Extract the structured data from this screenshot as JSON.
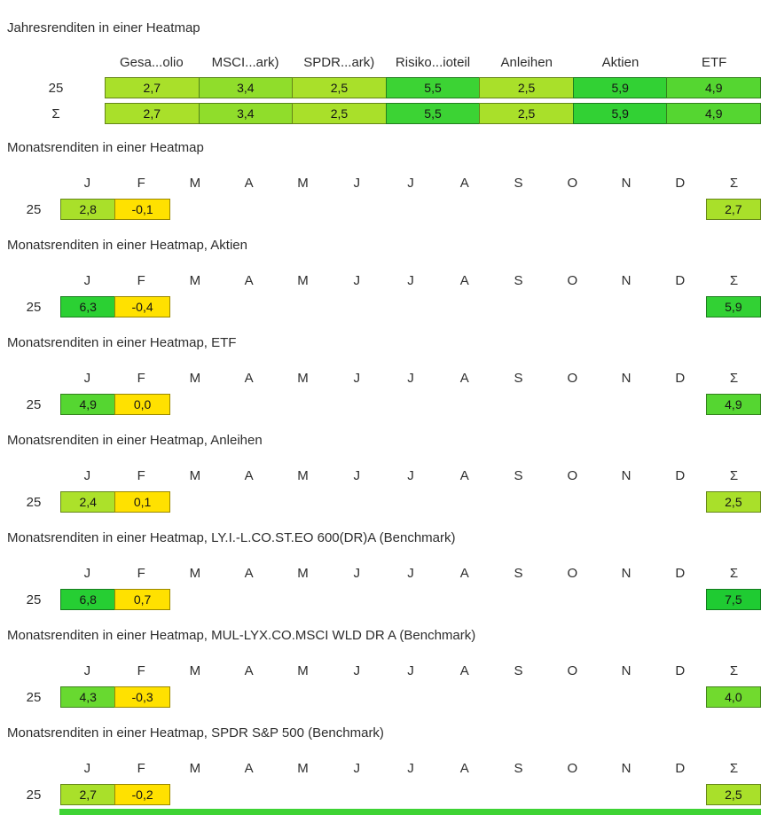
{
  "style": {
    "background": "#ffffff",
    "text": "#2d2d2d",
    "cell_border": "rgba(0,0,0,0.4)"
  },
  "chart_data": [
    {
      "type": "heatmap",
      "kind": "year",
      "title": "Jahresrenditen in einer Heatmap",
      "columns": [
        "Gesa...olio",
        "MSCI...ark)",
        "SPDR...ark)",
        "Risiko...ioteil",
        "Anleihen",
        "Aktien",
        "ETF"
      ],
      "rows": [
        {
          "label": "25",
          "cells": [
            {
              "v": "2,7",
              "value": 2.7,
              "color": "#a9e02a"
            },
            {
              "v": "3,4",
              "value": 3.4,
              "color": "#90dd2b"
            },
            {
              "v": "2,5",
              "value": 2.5,
              "color": "#a9e02a"
            },
            {
              "v": "5,5",
              "value": 5.5,
              "color": "#3cd334"
            },
            {
              "v": "2,5",
              "value": 2.5,
              "color": "#a9e02a"
            },
            {
              "v": "5,9",
              "value": 5.9,
              "color": "#32d134"
            },
            {
              "v": "4,9",
              "value": 4.9,
              "color": "#55d631"
            }
          ]
        },
        {
          "label": "Σ",
          "cells": [
            {
              "v": "2,7",
              "value": 2.7,
              "color": "#a9e02a"
            },
            {
              "v": "3,4",
              "value": 3.4,
              "color": "#90dd2b"
            },
            {
              "v": "2,5",
              "value": 2.5,
              "color": "#a9e02a"
            },
            {
              "v": "5,5",
              "value": 5.5,
              "color": "#3cd334"
            },
            {
              "v": "2,5",
              "value": 2.5,
              "color": "#a9e02a"
            },
            {
              "v": "5,9",
              "value": 5.9,
              "color": "#32d134"
            },
            {
              "v": "4,9",
              "value": 4.9,
              "color": "#55d631"
            }
          ]
        }
      ]
    },
    {
      "type": "heatmap",
      "kind": "month",
      "title": "Monatsrenditen in einer Heatmap",
      "columns": [
        "J",
        "F",
        "M",
        "A",
        "M",
        "J",
        "J",
        "A",
        "S",
        "O",
        "N",
        "D",
        "Σ"
      ],
      "rows": [
        {
          "label": "25",
          "cells": [
            {
              "v": "2,8",
              "value": 2.8,
              "color": "#a9e02a"
            },
            {
              "v": "-0,1",
              "value": -0.1,
              "color": "#ffe100"
            },
            null,
            null,
            null,
            null,
            null,
            null,
            null,
            null,
            null,
            null,
            {
              "v": "2,7",
              "value": 2.7,
              "color": "#a9e02a"
            }
          ]
        }
      ]
    },
    {
      "type": "heatmap",
      "kind": "month",
      "title": "Monatsrenditen in einer Heatmap, Aktien",
      "columns": [
        "J",
        "F",
        "M",
        "A",
        "M",
        "J",
        "J",
        "A",
        "S",
        "O",
        "N",
        "D",
        "Σ"
      ],
      "rows": [
        {
          "label": "25",
          "cells": [
            {
              "v": "6,3",
              "value": 6.3,
              "color": "#2bd033"
            },
            {
              "v": "-0,4",
              "value": -0.4,
              "color": "#ffe100"
            },
            null,
            null,
            null,
            null,
            null,
            null,
            null,
            null,
            null,
            null,
            {
              "v": "5,9",
              "value": 5.9,
              "color": "#32d134"
            }
          ]
        }
      ]
    },
    {
      "type": "heatmap",
      "kind": "month",
      "title": "Monatsrenditen in einer Heatmap, ETF",
      "columns": [
        "J",
        "F",
        "M",
        "A",
        "M",
        "J",
        "J",
        "A",
        "S",
        "O",
        "N",
        "D",
        "Σ"
      ],
      "rows": [
        {
          "label": "25",
          "cells": [
            {
              "v": "4,9",
              "value": 4.9,
              "color": "#55d631"
            },
            {
              "v": "0,0",
              "value": 0.0,
              "color": "#ffe100"
            },
            null,
            null,
            null,
            null,
            null,
            null,
            null,
            null,
            null,
            null,
            {
              "v": "4,9",
              "value": 4.9,
              "color": "#55d631"
            }
          ]
        }
      ]
    },
    {
      "type": "heatmap",
      "kind": "month",
      "title": "Monatsrenditen in einer Heatmap, Anleihen",
      "columns": [
        "J",
        "F",
        "M",
        "A",
        "M",
        "J",
        "J",
        "A",
        "S",
        "O",
        "N",
        "D",
        "Σ"
      ],
      "rows": [
        {
          "label": "25",
          "cells": [
            {
              "v": "2,4",
              "value": 2.4,
              "color": "#ace12a"
            },
            {
              "v": "0,1",
              "value": 0.1,
              "color": "#ffe100"
            },
            null,
            null,
            null,
            null,
            null,
            null,
            null,
            null,
            null,
            null,
            {
              "v": "2,5",
              "value": 2.5,
              "color": "#a9e02a"
            }
          ]
        }
      ]
    },
    {
      "type": "heatmap",
      "kind": "month",
      "title": "Monatsrenditen in einer Heatmap, LY.I.-L.CO.ST.EO 600(DR)A (Benchmark)",
      "columns": [
        "J",
        "F",
        "M",
        "A",
        "M",
        "J",
        "J",
        "A",
        "S",
        "O",
        "N",
        "D",
        "Σ"
      ],
      "rows": [
        {
          "label": "25",
          "cells": [
            {
              "v": "6,8",
              "value": 6.8,
              "color": "#26ce33"
            },
            {
              "v": "0,7",
              "value": 0.7,
              "color": "#ffe100"
            },
            null,
            null,
            null,
            null,
            null,
            null,
            null,
            null,
            null,
            null,
            {
              "v": "7,5",
              "value": 7.5,
              "color": "#1fcb32"
            }
          ]
        }
      ]
    },
    {
      "type": "heatmap",
      "kind": "month",
      "title": "Monatsrenditen in einer Heatmap, MUL-LYX.CO.MSCI WLD DR A (Benchmark)",
      "columns": [
        "J",
        "F",
        "M",
        "A",
        "M",
        "J",
        "J",
        "A",
        "S",
        "O",
        "N",
        "D",
        "Σ"
      ],
      "rows": [
        {
          "label": "25",
          "cells": [
            {
              "v": "4,3",
              "value": 4.3,
              "color": "#68d930"
            },
            {
              "v": "-0,3",
              "value": -0.3,
              "color": "#ffe100"
            },
            null,
            null,
            null,
            null,
            null,
            null,
            null,
            null,
            null,
            null,
            {
              "v": "4,0",
              "value": 4.0,
              "color": "#71da2e"
            }
          ]
        }
      ]
    },
    {
      "type": "heatmap",
      "kind": "month",
      "title": "Monatsrenditen in einer Heatmap, SPDR S&P 500 (Benchmark)",
      "columns": [
        "J",
        "F",
        "M",
        "A",
        "M",
        "J",
        "J",
        "A",
        "S",
        "O",
        "N",
        "D",
        "Σ"
      ],
      "rows": [
        {
          "label": "25",
          "cells": [
            {
              "v": "2,7",
              "value": 2.7,
              "color": "#a9e02a"
            },
            {
              "v": "-0,2",
              "value": -0.2,
              "color": "#ffe100"
            },
            null,
            null,
            null,
            null,
            null,
            null,
            null,
            null,
            null,
            null,
            {
              "v": "2,5",
              "value": 2.5,
              "color": "#a9e02a"
            }
          ]
        }
      ]
    }
  ],
  "clipped_next_row": {
    "color": "#3ed334"
  }
}
